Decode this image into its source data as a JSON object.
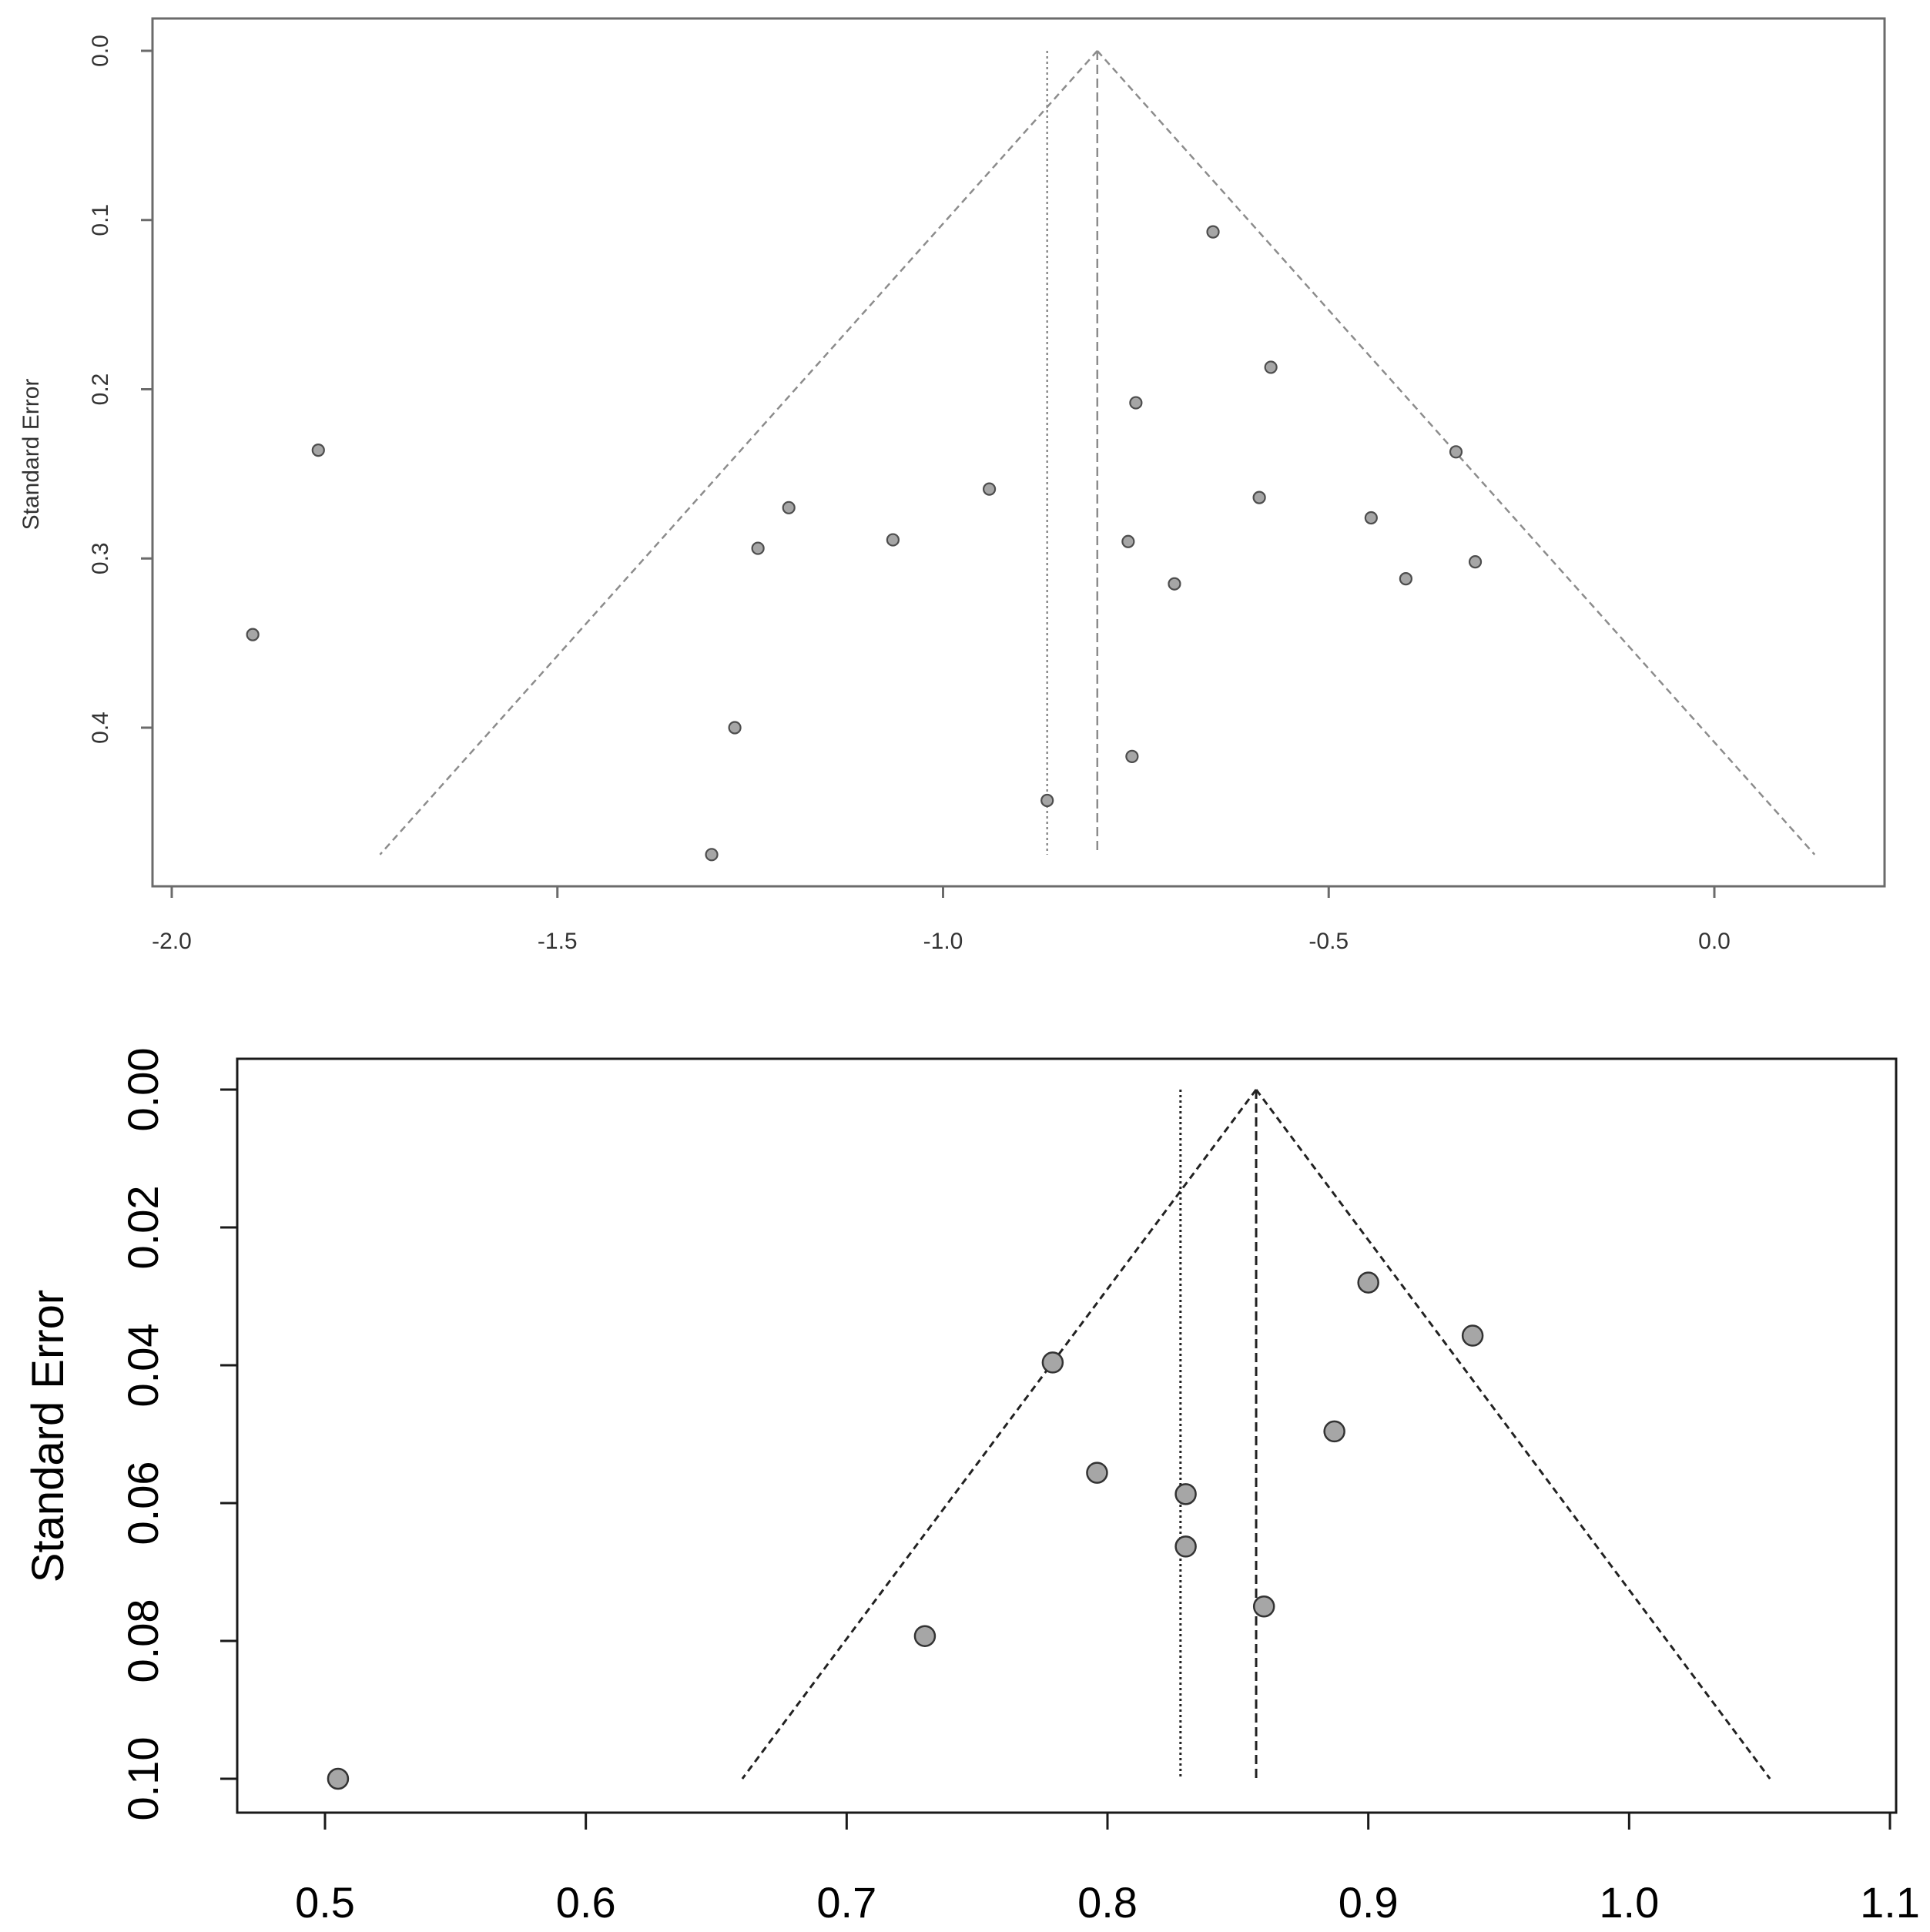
{
  "chart_data": [
    {
      "type": "scatter",
      "subtype": "funnel plot",
      "title": "",
      "xlabel": "",
      "ylabel": "Standard Error",
      "xlim": [
        -2.0,
        0.2
      ],
      "ylim": [
        0.0,
        0.48
      ],
      "y_reversed": true,
      "x_ticks": [
        -2.0,
        -1.5,
        -1.0,
        -0.5,
        0.0
      ],
      "x_tick_labels": [
        "-2.0",
        "-1.5",
        "-1.0",
        "-0.5",
        "0.0"
      ],
      "y_ticks": [
        0.0,
        0.1,
        0.2,
        0.3,
        0.4
      ],
      "y_tick_labels": [
        "0.0",
        "0.1",
        "0.2",
        "0.3",
        "0.4"
      ],
      "summary_estimate": -0.8,
      "reference_line": -0.865,
      "funnel_bottom_se": 0.475,
      "funnel_left_x_at_bottom": -1.73,
      "funnel_right_x_at_bottom": 0.13,
      "grid": false,
      "legend": "none",
      "colors": {
        "point_fill": "#a6a6a6",
        "point_edge": "#4d4d4d",
        "lines": "#8c8c8c",
        "frame": "#6b6b6b"
      },
      "points": [
        {
          "x": -1.81,
          "y": 0.236
        },
        {
          "x": -1.895,
          "y": 0.345
        },
        {
          "x": -1.2,
          "y": 0.27
        },
        {
          "x": -1.24,
          "y": 0.294
        },
        {
          "x": -1.065,
          "y": 0.289
        },
        {
          "x": -0.94,
          "y": 0.259
        },
        {
          "x": -1.27,
          "y": 0.4
        },
        {
          "x": -1.3,
          "y": 0.475
        },
        {
          "x": -0.865,
          "y": 0.443
        },
        {
          "x": -0.65,
          "y": 0.107
        },
        {
          "x": -0.575,
          "y": 0.187
        },
        {
          "x": -0.75,
          "y": 0.208
        },
        {
          "x": -0.335,
          "y": 0.237
        },
        {
          "x": -0.59,
          "y": 0.264
        },
        {
          "x": -0.445,
          "y": 0.276
        },
        {
          "x": -0.76,
          "y": 0.29
        },
        {
          "x": -0.31,
          "y": 0.302
        },
        {
          "x": -0.7,
          "y": 0.315
        },
        {
          "x": -0.4,
          "y": 0.312
        },
        {
          "x": -0.755,
          "y": 0.417
        }
      ]
    },
    {
      "type": "scatter",
      "subtype": "funnel plot",
      "title": "",
      "xlabel": "",
      "ylabel": "Standard Error",
      "xlim": [
        0.47,
        1.1
      ],
      "ylim": [
        0.0,
        0.105
      ],
      "y_reversed": true,
      "x_ticks": [
        0.5,
        0.6,
        0.7,
        0.8,
        0.9,
        1.0,
        1.1
      ],
      "x_tick_labels": [
        "0.5",
        "0.6",
        "0.7",
        "0.8",
        "0.9",
        "1.0",
        "1.1"
      ],
      "y_ticks": [
        0.0,
        0.02,
        0.04,
        0.06,
        0.08,
        0.1
      ],
      "y_tick_labels": [
        "0.00",
        "0.02",
        "0.04",
        "0.06",
        "0.08",
        "0.10"
      ],
      "summary_estimate": 0.857,
      "reference_line": 0.828,
      "funnel_bottom_se": 0.1,
      "funnel_left_x_at_bottom": 0.66,
      "funnel_right_x_at_bottom": 1.054,
      "grid": false,
      "legend": "none",
      "colors": {
        "point_fill": "#a6a6a6",
        "point_edge": "#333333",
        "lines": "#222222",
        "frame": "#1a1a1a"
      },
      "points": [
        {
          "x": 0.9,
          "y": 0.028
        },
        {
          "x": 0.94,
          "y": 0.0357
        },
        {
          "x": 0.779,
          "y": 0.0396
        },
        {
          "x": 0.887,
          "y": 0.0496
        },
        {
          "x": 0.796,
          "y": 0.0556
        },
        {
          "x": 0.83,
          "y": 0.0587
        },
        {
          "x": 0.83,
          "y": 0.0663
        },
        {
          "x": 0.86,
          "y": 0.075
        },
        {
          "x": 0.73,
          "y": 0.0793
        },
        {
          "x": 0.505,
          "y": 0.1
        }
      ]
    }
  ]
}
